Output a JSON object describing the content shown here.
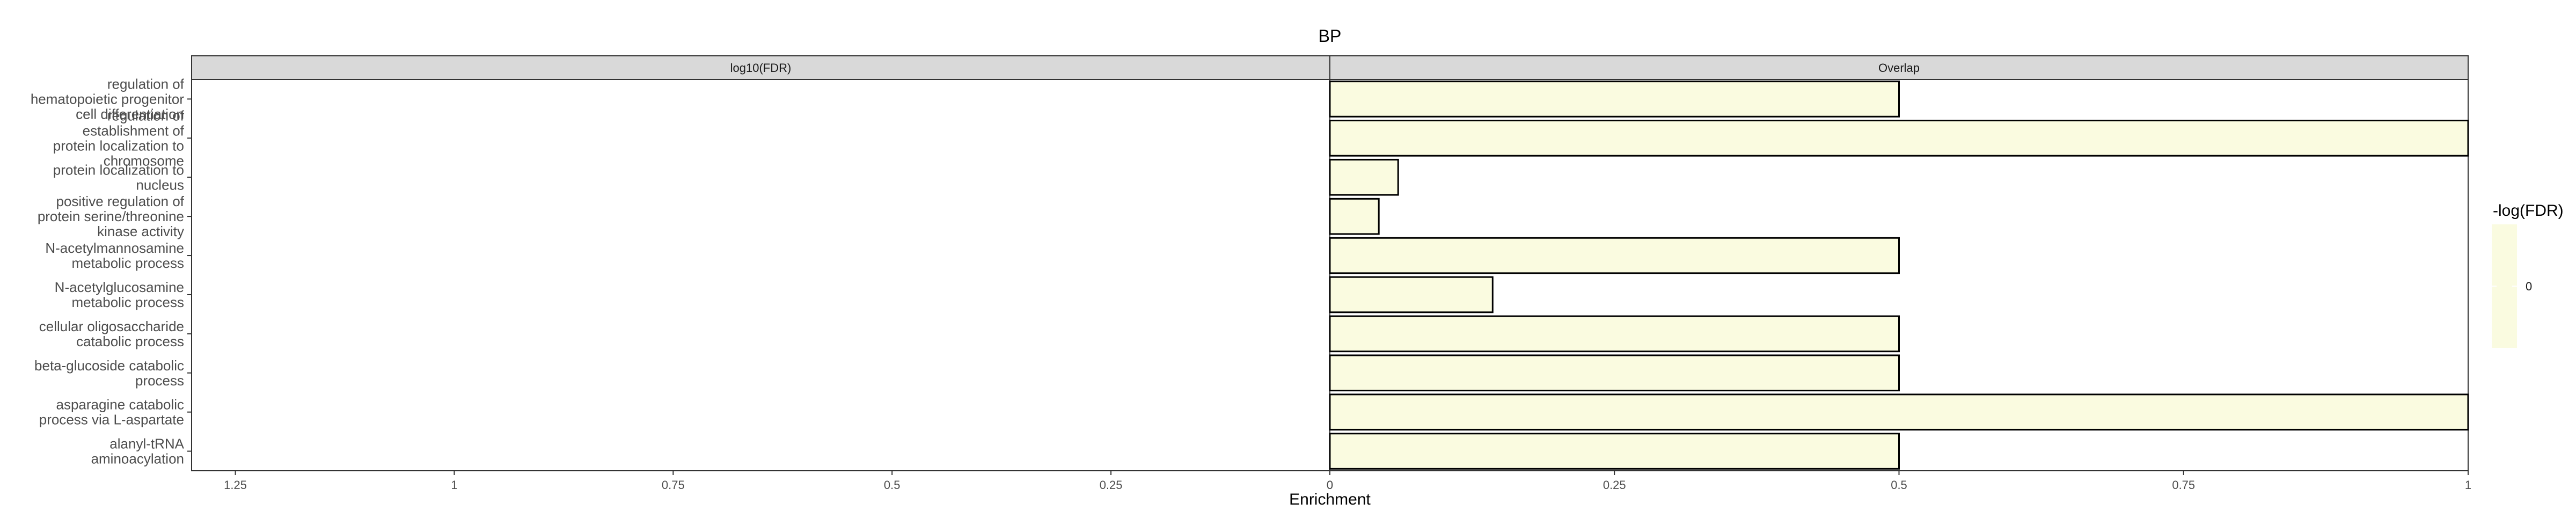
{
  "chart_data": {
    "type": "bar",
    "orientation": "horizontal",
    "title": "BP",
    "xlabel": "Enrichment",
    "panels": [
      {
        "name": "log10(FDR)",
        "reversed": true,
        "xlim": [
          0,
          1.3
        ],
        "ticks": [
          1.25,
          1,
          0.75,
          0.5,
          0.25,
          0
        ],
        "tick_labels": [
          "1.25",
          "1",
          "0.75",
          "0.5",
          "0.25",
          "0"
        ],
        "values": [
          0,
          0,
          0,
          0,
          0,
          0,
          0,
          0,
          0,
          0
        ]
      },
      {
        "name": "Overlap",
        "reversed": false,
        "xlim": [
          0,
          1
        ],
        "ticks": [
          0,
          0.25,
          0.5,
          0.75,
          1
        ],
        "tick_labels": [
          "0",
          "0.25",
          "0.5",
          "0.75",
          "1"
        ],
        "values": [
          0.5,
          1.0,
          0.06,
          0.043,
          0.5,
          0.143,
          0.5,
          0.5,
          1.0,
          0.5
        ]
      }
    ],
    "categories": [
      [
        "regulation of",
        "hematopoietic progenitor",
        "cell differentiation"
      ],
      [
        "regulation of",
        "establishment of",
        "protein localization to",
        "chromosome"
      ],
      [
        "protein localization to",
        "nucleus"
      ],
      [
        "positive regulation of",
        "protein serine/threonine",
        "kinase activity"
      ],
      [
        "N-acetylmannosamine",
        "metabolic process"
      ],
      [
        "N-acetylglucosamine",
        "metabolic process"
      ],
      [
        "cellular oligosaccharide",
        "catabolic process"
      ],
      [
        "beta-glucoside catabolic",
        "process"
      ],
      [
        "asparagine catabolic",
        "process via L-aspartate"
      ],
      [
        "alanyl-tRNA",
        "aminoacylation"
      ]
    ],
    "legend": {
      "title": "-log(FDR)",
      "position": "right",
      "labels": [
        "0"
      ]
    },
    "colors": {
      "bar_fill": "#fafbe0",
      "bar_stroke": "#000000",
      "strip_fill": "#d9d9d9",
      "panel_border": "#333333"
    },
    "grid": false
  }
}
